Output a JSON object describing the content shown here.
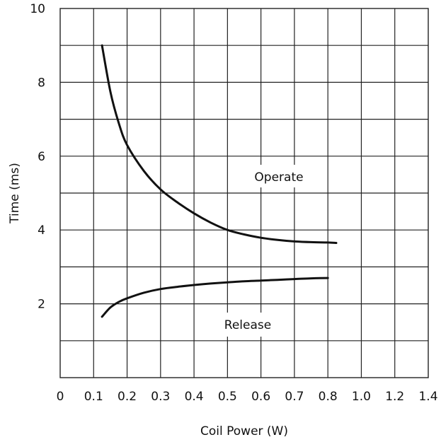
{
  "chart_data": {
    "type": "line",
    "title": "",
    "xlabel": "Coil Power (W)",
    "ylabel": "Time (ms)",
    "xlim": [
      0,
      1.4
    ],
    "ylim": [
      0,
      10
    ],
    "x_ticks": [
      "0",
      "0.1",
      "0.2",
      "0.3",
      "0.4",
      "0.5",
      "0.6",
      "0.7",
      "0.8",
      "1.0",
      "1.2",
      "1.4"
    ],
    "y_ticks": [
      "2",
      "4",
      "6",
      "8",
      "10"
    ],
    "y_tick_values": [
      2,
      4,
      6,
      8,
      10
    ],
    "y_grid_values": [
      1,
      2,
      3,
      4,
      5,
      6,
      7,
      8,
      9
    ],
    "grid": true,
    "series": [
      {
        "name": "Operate",
        "color": "#111111",
        "x": [
          0.125,
          0.15,
          0.175,
          0.2,
          0.25,
          0.3,
          0.35,
          0.4,
          0.45,
          0.5,
          0.55,
          0.6,
          0.65,
          0.7,
          0.75,
          0.8,
          0.85
        ],
        "y": [
          9.0,
          7.75,
          6.9,
          6.3,
          5.6,
          5.1,
          4.75,
          4.45,
          4.2,
          4.0,
          3.88,
          3.79,
          3.73,
          3.69,
          3.67,
          3.66,
          3.65
        ]
      },
      {
        "name": "Release",
        "color": "#111111",
        "x": [
          0.125,
          0.15,
          0.175,
          0.2,
          0.25,
          0.3,
          0.35,
          0.4,
          0.45,
          0.5,
          0.55,
          0.6,
          0.65,
          0.7,
          0.75,
          0.8
        ],
        "y": [
          1.65,
          1.9,
          2.05,
          2.15,
          2.3,
          2.4,
          2.46,
          2.51,
          2.55,
          2.58,
          2.61,
          2.63,
          2.65,
          2.67,
          2.69,
          2.7
        ]
      }
    ]
  }
}
